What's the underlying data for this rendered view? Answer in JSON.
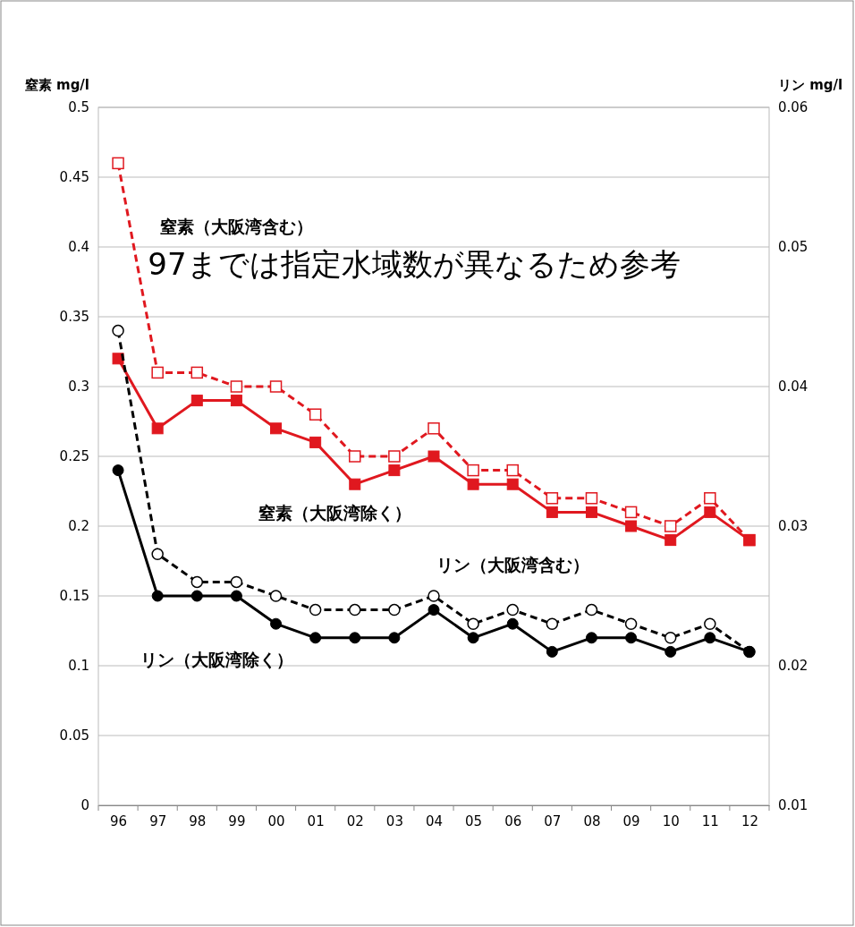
{
  "chart_data": {
    "type": "line",
    "categories": [
      "96",
      "97",
      "98",
      "99",
      "00",
      "01",
      "02",
      "03",
      "04",
      "05",
      "06",
      "07",
      "08",
      "09",
      "10",
      "11",
      "12"
    ],
    "ylabel": "窒素 mg/l",
    "y2label": "リン mg/l",
    "ylim": [
      0,
      0.5
    ],
    "yticks": [
      0,
      0.05,
      0.1,
      0.15,
      0.2,
      0.25,
      0.3,
      0.35,
      0.4,
      0.45,
      0.5
    ],
    "y2lim": [
      0.01,
      0.06
    ],
    "y2ticks": [
      0.01,
      0.02,
      0.03,
      0.04,
      0.05,
      0.06
    ],
    "grid": "y",
    "annotations": [
      "97までは指定水域数が異なるため参考"
    ],
    "series": [
      {
        "name": "窒素（大阪湾含む）",
        "color": "#e0181f",
        "marker": "square",
        "line_style": "dashed",
        "values": [
          0.46,
          0.31,
          0.31,
          0.3,
          0.3,
          0.28,
          0.25,
          0.25,
          0.27,
          0.24,
          0.24,
          0.22,
          0.22,
          0.21,
          0.2,
          0.22,
          0.19
        ]
      },
      {
        "name": "窒素（大阪湾除く）",
        "color": "#e0181f",
        "marker": "square",
        "line_style": "solid",
        "values": [
          0.32,
          0.27,
          0.29,
          0.29,
          0.27,
          0.26,
          0.23,
          0.24,
          0.25,
          0.23,
          0.23,
          0.21,
          0.21,
          0.2,
          0.19,
          0.21,
          0.19
        ]
      },
      {
        "name": "リン（大阪湾含む）",
        "color": "#000000",
        "marker": "circle",
        "line_style": "dashed",
        "axis": "y2",
        "values": [
          0.044,
          0.028,
          0.026,
          0.026,
          0.025,
          0.024,
          0.024,
          0.024,
          0.025,
          0.023,
          0.024,
          0.023,
          0.024,
          0.023,
          0.022,
          0.023,
          0.021
        ]
      },
      {
        "name": "リン（大阪湾除く）",
        "color": "#000000",
        "marker": "circle",
        "line_style": "solid",
        "axis": "y2",
        "values": [
          0.034,
          0.025,
          0.025,
          0.025,
          0.023,
          0.022,
          0.022,
          0.022,
          0.024,
          0.022,
          0.023,
          0.021,
          0.022,
          0.022,
          0.021,
          0.022,
          0.021
        ]
      }
    ]
  }
}
